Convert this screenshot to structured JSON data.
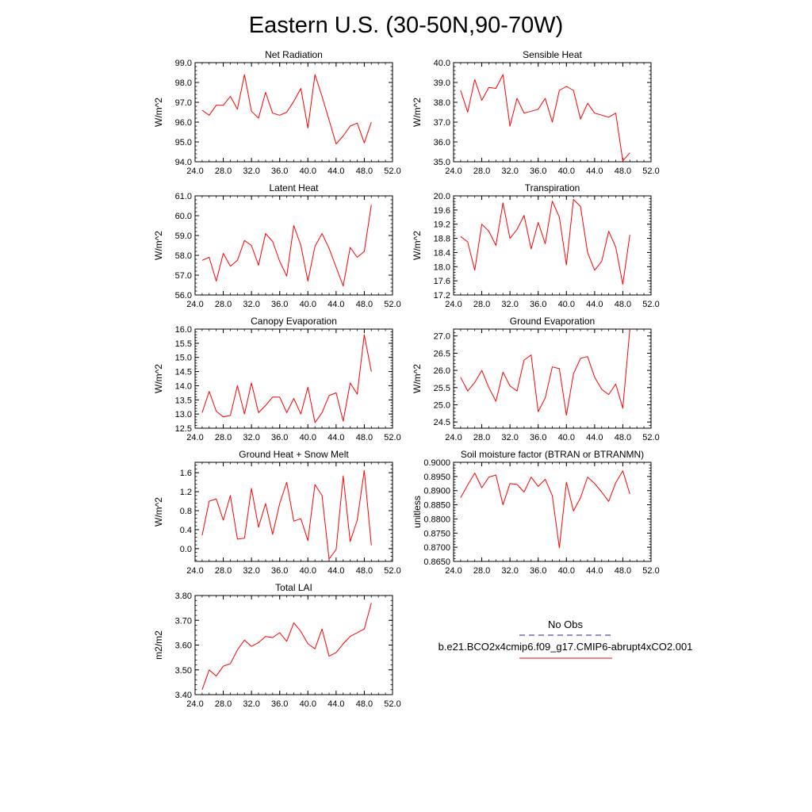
{
  "title": "Eastern U.S. (30-50N,90-70W)",
  "chart_data": [
    {
      "type": "line",
      "title": "Net Radiation",
      "xlabel": "",
      "ylabel": "W/m^2",
      "xlim": [
        24,
        52
      ],
      "ylim": [
        94,
        99
      ],
      "xticks": [
        24,
        28,
        32,
        36,
        40,
        44,
        48,
        52
      ],
      "xtick_labels": [
        "24.0",
        "28.0",
        "32.0",
        "36.0",
        "40.0",
        "44.0",
        "48.0",
        "52.0"
      ],
      "yticks": [
        94,
        95,
        96,
        97,
        98,
        99
      ],
      "ytick_labels": [
        "94.0",
        "95.0",
        "96.0",
        "97.0",
        "98.0",
        "99.0"
      ],
      "series": [
        {
          "name": "b.e21.BCO2x4cmip6.f09_g17.CMIP6-abrupt4xCO2.001",
          "color": "#ff0000",
          "x": [
            25,
            26,
            27,
            28,
            29,
            30,
            31,
            32,
            33,
            34,
            35,
            36,
            37,
            38,
            39,
            40,
            41,
            42,
            43,
            44,
            45,
            46,
            47,
            48,
            49
          ],
          "y": [
            96.6,
            96.35,
            96.85,
            96.85,
            97.3,
            96.65,
            98.4,
            96.55,
            96.2,
            97.5,
            96.45,
            96.35,
            96.5,
            97.05,
            97.7,
            95.7,
            98.4,
            97.3,
            96.1,
            94.9,
            95.3,
            95.8,
            95.95,
            94.95,
            96.0
          ]
        }
      ]
    },
    {
      "type": "line",
      "title": "Sensible Heat",
      "xlabel": "",
      "ylabel": "W/m^2",
      "xlim": [
        24,
        52
      ],
      "ylim": [
        35,
        40
      ],
      "xticks": [
        24,
        28,
        32,
        36,
        40,
        44,
        48,
        52
      ],
      "xtick_labels": [
        "24.0",
        "28.0",
        "32.0",
        "36.0",
        "40.0",
        "44.0",
        "48.0",
        "52.0"
      ],
      "yticks": [
        35,
        36,
        37,
        38,
        39,
        40
      ],
      "ytick_labels": [
        "35.0",
        "36.0",
        "37.0",
        "38.0",
        "39.0",
        "40.0"
      ],
      "series": [
        {
          "name": "b.e21.BCO2x4cmip6.f09_g17.CMIP6-abrupt4xCO2.001",
          "color": "#ff0000",
          "x": [
            25,
            26,
            27,
            28,
            29,
            30,
            31,
            32,
            33,
            34,
            35,
            36,
            37,
            38,
            39,
            40,
            41,
            42,
            43,
            44,
            45,
            46,
            47,
            48,
            49
          ],
          "y": [
            38.6,
            37.5,
            39.15,
            38.1,
            38.75,
            38.7,
            39.4,
            36.8,
            38.2,
            37.45,
            37.55,
            37.65,
            38.2,
            37.0,
            38.6,
            38.8,
            38.6,
            37.15,
            37.95,
            37.45,
            37.35,
            37.25,
            37.45,
            35.05,
            35.45
          ]
        }
      ]
    },
    {
      "type": "line",
      "title": "Latent Heat",
      "xlabel": "",
      "ylabel": "W/m^2",
      "xlim": [
        24,
        52
      ],
      "ylim": [
        56,
        61
      ],
      "xticks": [
        24,
        28,
        32,
        36,
        40,
        44,
        48,
        52
      ],
      "xtick_labels": [
        "24.0",
        "28.0",
        "32.0",
        "36.0",
        "40.0",
        "44.0",
        "48.0",
        "52.0"
      ],
      "yticks": [
        56,
        57,
        58,
        59,
        60,
        61
      ],
      "ytick_labels": [
        "56.0",
        "57.0",
        "58.0",
        "59.0",
        "60.0",
        "61.0"
      ],
      "series": [
        {
          "name": "b.e21.BCO2x4cmip6.f09_g17.CMIP6-abrupt4xCO2.001",
          "color": "#ff0000",
          "x": [
            25,
            26,
            27,
            28,
            29,
            30,
            31,
            32,
            33,
            34,
            35,
            36,
            37,
            38,
            39,
            40,
            41,
            42,
            43,
            44,
            45,
            46,
            47,
            48,
            49
          ],
          "y": [
            57.75,
            57.9,
            56.7,
            58.1,
            57.45,
            57.75,
            58.75,
            58.5,
            57.5,
            59.1,
            58.7,
            57.7,
            56.95,
            59.5,
            58.5,
            56.7,
            58.45,
            59.1,
            58.35,
            57.4,
            56.45,
            58.4,
            57.9,
            58.2,
            60.55
          ]
        }
      ]
    },
    {
      "type": "line",
      "title": "Transpiration",
      "xlabel": "",
      "ylabel": "W/m^2",
      "xlim": [
        24,
        52
      ],
      "ylim": [
        17.2,
        20.0
      ],
      "xticks": [
        24,
        28,
        32,
        36,
        40,
        44,
        48,
        52
      ],
      "xtick_labels": [
        "24.0",
        "28.0",
        "32.0",
        "36.0",
        "40.0",
        "44.0",
        "48.0",
        "52.0"
      ],
      "yticks": [
        17.2,
        17.6,
        18.0,
        18.4,
        18.8,
        19.2,
        19.6,
        20.0
      ],
      "ytick_labels": [
        "17.2",
        "17.6",
        "18.0",
        "18.4",
        "18.8",
        "19.2",
        "19.6",
        "20.0"
      ],
      "series": [
        {
          "name": "b.e21.BCO2x4cmip6.f09_g17.CMIP6-abrupt4xCO2.001",
          "color": "#ff0000",
          "x": [
            25,
            26,
            27,
            28,
            29,
            30,
            31,
            32,
            33,
            34,
            35,
            36,
            37,
            38,
            39,
            40,
            41,
            42,
            43,
            44,
            45,
            46,
            47,
            48,
            49
          ],
          "y": [
            18.85,
            18.7,
            17.9,
            19.2,
            19.0,
            18.6,
            19.8,
            18.8,
            19.05,
            19.45,
            18.5,
            19.25,
            18.65,
            19.85,
            19.4,
            18.05,
            19.9,
            19.7,
            18.4,
            17.9,
            18.15,
            19.0,
            18.55,
            17.5,
            18.9
          ]
        }
      ]
    },
    {
      "type": "line",
      "title": "Canopy Evaporation",
      "xlabel": "",
      "ylabel": "W/m^2",
      "xlim": [
        24,
        52
      ],
      "ylim": [
        12.5,
        16.0
      ],
      "xticks": [
        24,
        28,
        32,
        36,
        40,
        44,
        48,
        52
      ],
      "xtick_labels": [
        "24.0",
        "28.0",
        "32.0",
        "36.0",
        "40.0",
        "44.0",
        "48.0",
        "52.0"
      ],
      "yticks": [
        12.5,
        13.0,
        13.5,
        14.0,
        14.5,
        15.0,
        15.5,
        16.0
      ],
      "ytick_labels": [
        "12.5",
        "13.0",
        "13.5",
        "14.0",
        "14.5",
        "15.0",
        "15.5",
        "16.0"
      ],
      "series": [
        {
          "name": "b.e21.BCO2x4cmip6.f09_g17.CMIP6-abrupt4xCO2.001",
          "color": "#ff0000",
          "x": [
            25,
            26,
            27,
            28,
            29,
            30,
            31,
            32,
            33,
            34,
            35,
            36,
            37,
            38,
            39,
            40,
            41,
            42,
            43,
            44,
            45,
            46,
            47,
            48,
            49
          ],
          "y": [
            13.05,
            13.8,
            13.1,
            12.9,
            12.95,
            14.0,
            13.0,
            14.1,
            13.05,
            13.3,
            13.6,
            13.6,
            13.05,
            13.55,
            13.0,
            13.95,
            12.7,
            13.05,
            13.65,
            13.75,
            12.75,
            14.1,
            13.7,
            15.8,
            14.5
          ]
        }
      ]
    },
    {
      "type": "line",
      "title": "Ground Evaporation",
      "xlabel": "",
      "ylabel": "W/m^2",
      "xlim": [
        24,
        52
      ],
      "ylim": [
        24.32,
        27.2
      ],
      "xticks": [
        24,
        28,
        32,
        36,
        40,
        44,
        48,
        52
      ],
      "xtick_labels": [
        "24.0",
        "28.0",
        "32.0",
        "36.0",
        "40.0",
        "44.0",
        "48.0",
        "52.0"
      ],
      "yticks": [
        24.5,
        25.0,
        25.5,
        26.0,
        26.5,
        27.0
      ],
      "ytick_labels": [
        "24.5",
        "25.0",
        "25.5",
        "26.0",
        "26.5",
        "27.0"
      ],
      "series": [
        {
          "name": "b.e21.BCO2x4cmip6.f09_g17.CMIP6-abrupt4xCO2.001",
          "color": "#ff0000",
          "x": [
            25,
            26,
            27,
            28,
            29,
            30,
            31,
            32,
            33,
            34,
            35,
            36,
            37,
            38,
            39,
            40,
            41,
            42,
            43,
            44,
            45,
            46,
            47,
            48,
            49
          ],
          "y": [
            25.8,
            25.4,
            25.65,
            26.0,
            25.5,
            25.1,
            25.95,
            25.55,
            25.4,
            26.3,
            26.45,
            24.8,
            25.2,
            26.1,
            26.05,
            24.7,
            25.9,
            26.35,
            26.4,
            25.8,
            25.45,
            25.3,
            25.6,
            24.9,
            27.2
          ]
        }
      ]
    },
    {
      "type": "line",
      "title": "Ground Heat + Snow Melt",
      "xlabel": "",
      "ylabel": "W/m^2",
      "xlim": [
        24,
        52
      ],
      "ylim": [
        -0.27,
        1.82
      ],
      "xticks": [
        24,
        28,
        32,
        36,
        40,
        44,
        48,
        52
      ],
      "xtick_labels": [
        "24.0",
        "28.0",
        "32.0",
        "36.0",
        "40.0",
        "44.0",
        "48.0",
        "52.0"
      ],
      "yticks": [
        0.0,
        0.4,
        0.8,
        1.2,
        1.6
      ],
      "ytick_labels": [
        "0.0",
        "0.4",
        "0.8",
        "1.2",
        "1.6"
      ],
      "series": [
        {
          "name": "b.e21.BCO2x4cmip6.f09_g17.CMIP6-abrupt4xCO2.001",
          "color": "#ff0000",
          "x": [
            25,
            26,
            27,
            28,
            29,
            30,
            31,
            32,
            33,
            34,
            35,
            36,
            37,
            38,
            39,
            40,
            41,
            42,
            43,
            44,
            45,
            46,
            47,
            48,
            49
          ],
          "y": [
            0.28,
            1.0,
            1.05,
            0.6,
            1.12,
            0.2,
            0.22,
            1.27,
            0.45,
            0.95,
            0.3,
            0.95,
            1.4,
            0.58,
            0.63,
            0.17,
            1.35,
            1.12,
            -0.22,
            -0.02,
            1.53,
            0.15,
            0.6,
            1.65,
            0.07
          ]
        }
      ]
    },
    {
      "type": "line",
      "title": "Soil moisture factor (BTRAN or BTRANMN)",
      "xlabel": "",
      "ylabel": "unitless",
      "xlim": [
        24,
        52
      ],
      "ylim": [
        0.865,
        0.9
      ],
      "xticks": [
        24,
        28,
        32,
        36,
        40,
        44,
        48,
        52
      ],
      "xtick_labels": [
        "24.0",
        "28.0",
        "32.0",
        "36.0",
        "40.0",
        "44.0",
        "48.0",
        "52.0"
      ],
      "yticks": [
        0.865,
        0.87,
        0.875,
        0.88,
        0.885,
        0.89,
        0.895,
        0.9
      ],
      "ytick_labels": [
        "0.8650",
        "0.8700",
        "0.8750",
        "0.8800",
        "0.8850",
        "0.8900",
        "0.8950",
        "0.9000"
      ],
      "series": [
        {
          "name": "b.e21.BCO2x4cmip6.f09_g17.CMIP6-abrupt4xCO2.001",
          "color": "#ff0000",
          "x": [
            25,
            26,
            27,
            28,
            29,
            30,
            31,
            32,
            33,
            34,
            35,
            36,
            37,
            38,
            39,
            40,
            41,
            42,
            43,
            44,
            45,
            46,
            47,
            48,
            49
          ],
          "y": [
            0.8875,
            0.892,
            0.8962,
            0.891,
            0.8948,
            0.8955,
            0.885,
            0.8925,
            0.8922,
            0.8895,
            0.8948,
            0.8915,
            0.894,
            0.8882,
            0.8698,
            0.893,
            0.8828,
            0.8875,
            0.8948,
            0.8925,
            0.8895,
            0.8862,
            0.8928,
            0.897,
            0.8888
          ]
        }
      ]
    },
    {
      "type": "line",
      "title": "Total LAI",
      "xlabel": "",
      "ylabel": "m2/m2",
      "xlim": [
        24,
        52
      ],
      "ylim": [
        3.4,
        3.8
      ],
      "xticks": [
        24,
        28,
        32,
        36,
        40,
        44,
        48,
        52
      ],
      "xtick_labels": [
        "24.0",
        "28.0",
        "32.0",
        "36.0",
        "40.0",
        "44.0",
        "48.0",
        "52.0"
      ],
      "yticks": [
        3.4,
        3.5,
        3.6,
        3.7,
        3.8
      ],
      "ytick_labels": [
        "3.40",
        "3.50",
        "3.60",
        "3.70",
        "3.80"
      ],
      "series": [
        {
          "name": "b.e21.BCO2x4cmip6.f09_g17.CMIP6-abrupt4xCO2.001",
          "color": "#ff0000",
          "x": [
            25,
            26,
            27,
            28,
            29,
            30,
            31,
            32,
            33,
            34,
            35,
            36,
            37,
            38,
            39,
            40,
            41,
            42,
            43,
            44,
            45,
            46,
            47,
            48,
            49
          ],
          "y": [
            3.42,
            3.5,
            3.475,
            3.515,
            3.525,
            3.58,
            3.62,
            3.595,
            3.61,
            3.635,
            3.63,
            3.65,
            3.615,
            3.69,
            3.655,
            3.605,
            3.585,
            3.665,
            3.555,
            3.57,
            3.605,
            3.635,
            3.65,
            3.665,
            3.77
          ]
        }
      ]
    }
  ],
  "legend": {
    "items": [
      {
        "label": "No Obs",
        "color": "#1e1ea0",
        "style": "dashed"
      },
      {
        "label": "b.e21.BCO2x4cmip6.f09_g17.CMIP6-abrupt4xCO2.001",
        "color": "#ff0000",
        "style": "solid"
      }
    ]
  }
}
